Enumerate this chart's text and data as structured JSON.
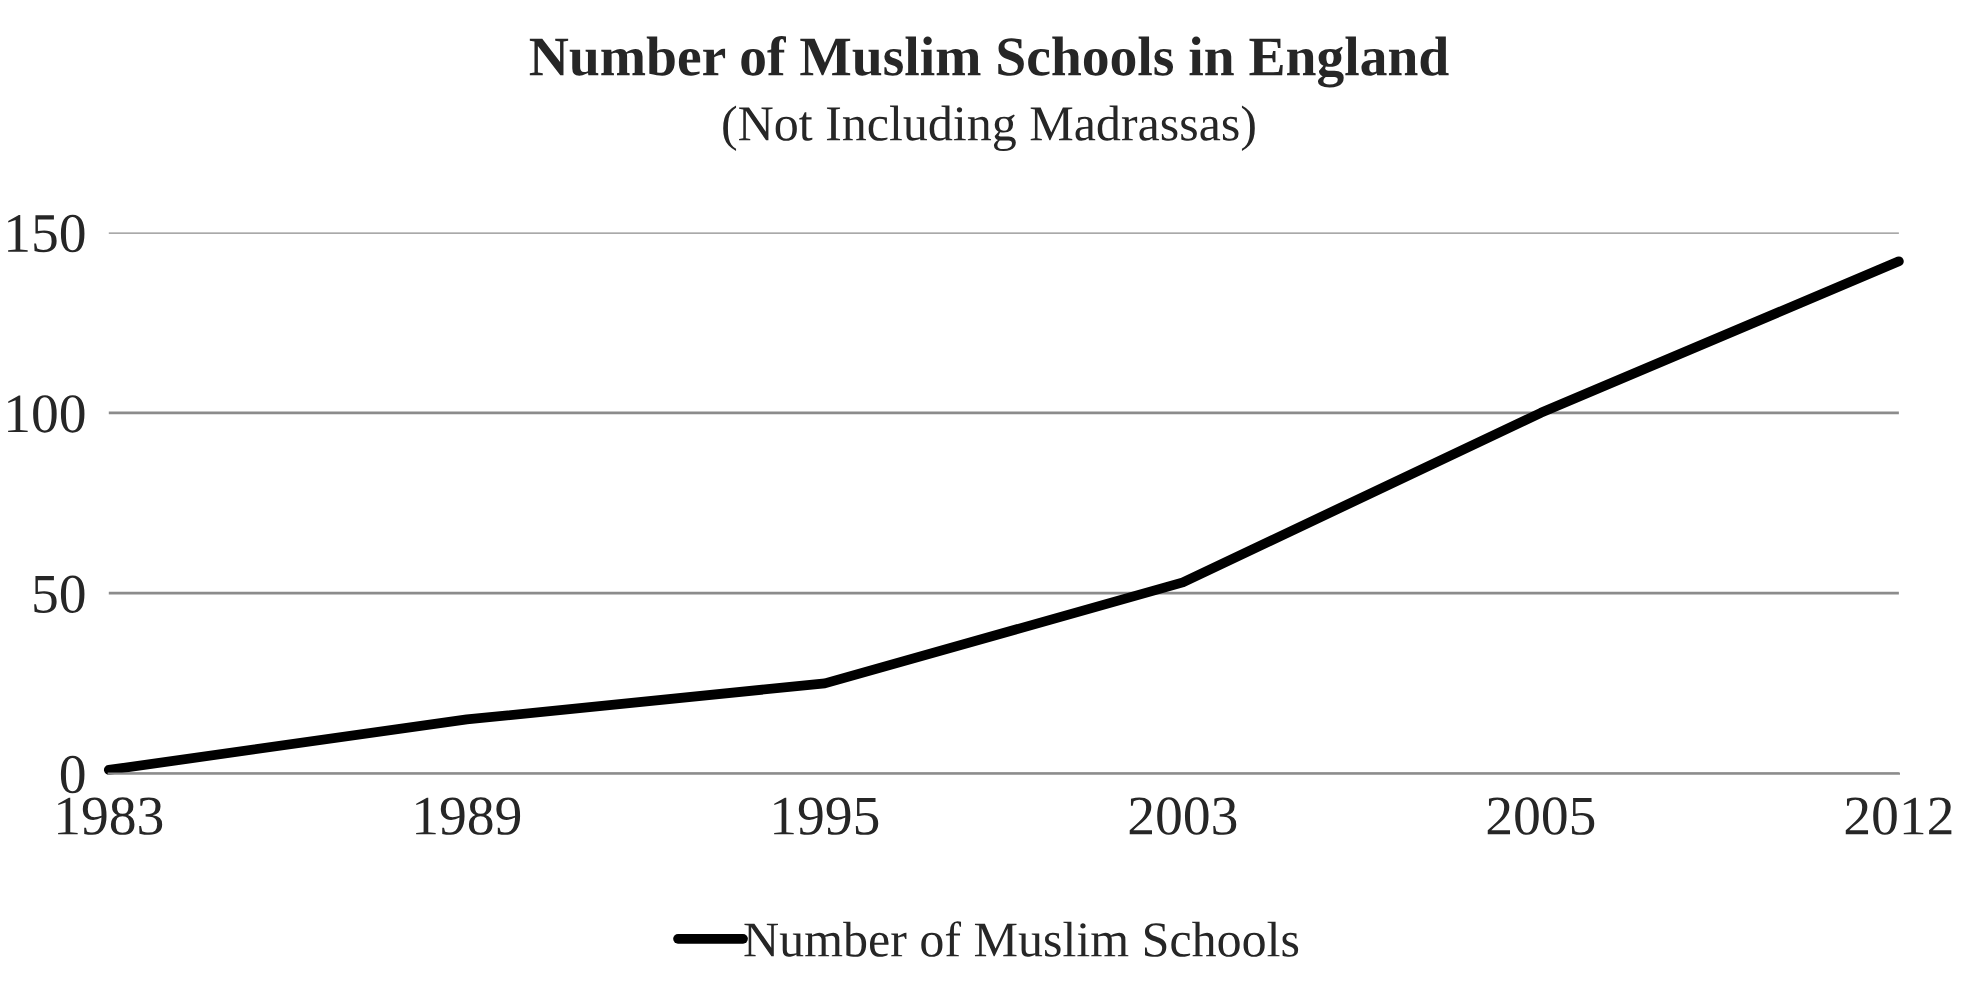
{
  "chart_data": {
    "type": "line",
    "title": "Number of Muslim Schools in England",
    "subtitle": "(Not Including Madrassas)",
    "categories": [
      "1983",
      "1989",
      "1995",
      "2003",
      "2005",
      "2012"
    ],
    "series": [
      {
        "name": "Number of Muslim Schools",
        "color": "#000000",
        "values": [
          1,
          15,
          25,
          53,
          100,
          142
        ]
      }
    ],
    "ylim": [
      0,
      150
    ],
    "yticks": [
      0,
      50,
      100,
      150
    ],
    "grid": "y",
    "legend": "bottom",
    "marker": "none",
    "line_style": "solid"
  }
}
